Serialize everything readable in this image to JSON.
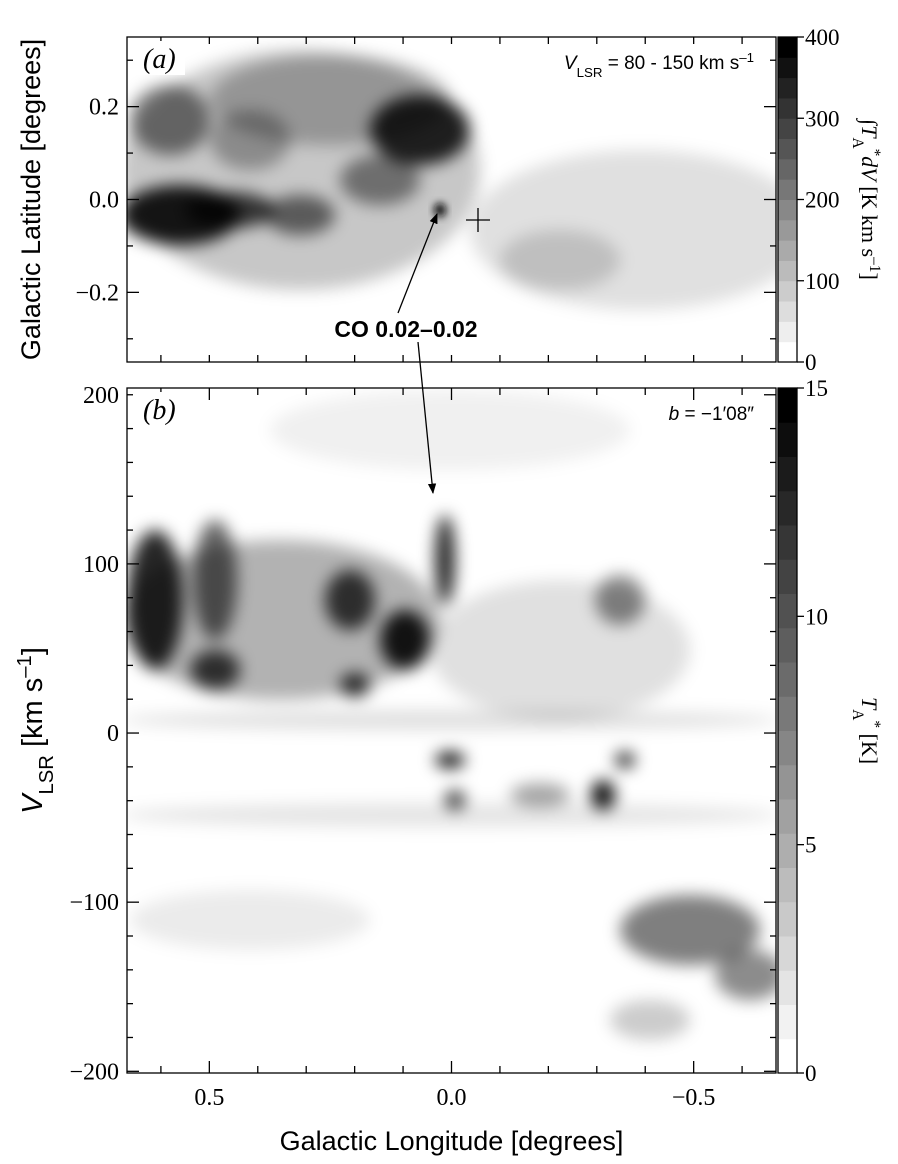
{
  "chart_data": [
    {
      "type": "heatmap",
      "panel_label": "(a)",
      "annotation": [
        {
          "text": "V",
          "style": "italic"
        },
        {
          "text": "LSR",
          "style": "sub"
        },
        {
          "text": " = 80 - 150 km s"
        },
        {
          "text": "–1",
          "style": "sup"
        }
      ],
      "ylabel": "Galactic Latitude  [degrees]",
      "xlim": [
        0.67,
        -0.67
      ],
      "xminorticks": [
        0.6,
        0.5,
        0.4,
        0.3,
        0.2,
        0.1,
        0,
        -0.1,
        -0.2,
        -0.3,
        -0.4,
        -0.5,
        -0.6
      ],
      "ylim": [
        -0.35,
        0.35
      ],
      "yticks": [
        {
          "value": 0.2,
          "label": "0.2"
        },
        {
          "value": 0,
          "label": "0.0"
        },
        {
          "value": -0.2,
          "label": "−0.2"
        }
      ],
      "yminorticks": [
        0.3,
        0.1,
        -0.1,
        -0.3
      ],
      "callout": "CO 0.02–0.02",
      "colorbar": {
        "lim": [
          0,
          400
        ],
        "ticks": [
          0,
          100,
          200,
          300,
          400
        ],
        "steps": 16,
        "label": [
          {
            "text": "∫",
            "style": "plain"
          },
          {
            "text": "T",
            "style": "italic"
          },
          {
            "text": "A",
            "style": "sub"
          },
          {
            "text": "*",
            "style": "sup"
          },
          {
            "text": "dV",
            "style": "italic"
          },
          {
            "text": " [K km s"
          },
          {
            "text": "–1",
            "style": "sup"
          },
          {
            "text": "]"
          }
        ]
      }
    },
    {
      "type": "heatmap",
      "panel_label": "(b)",
      "annotation": [
        {
          "text": "b",
          "style": "italic"
        },
        {
          "text": " = −1′08″"
        }
      ],
      "ylabel": [
        {
          "text": "V",
          "style": "italic"
        },
        {
          "text": "LSR",
          "style": "sub"
        },
        {
          "text": "  [km s"
        },
        {
          "text": "–1",
          "style": "sup"
        },
        {
          "text": "]"
        }
      ],
      "xlabel": "Galactic Longitude  [degrees]",
      "xlim": [
        0.67,
        -0.67
      ],
      "xticks": [
        {
          "value": 0.5,
          "label": "0.5"
        },
        {
          "value": 0,
          "label": "0.0"
        },
        {
          "value": -0.5,
          "label": "−0.5"
        }
      ],
      "xminorticks": [
        0.6,
        0.4,
        0.3,
        0.2,
        0.1,
        -0.1,
        -0.2,
        -0.3,
        -0.4,
        -0.6
      ],
      "ylim": [
        -201,
        204
      ],
      "yticks": [
        200,
        100,
        0,
        {
          "value": -100,
          "label": "−100"
        },
        {
          "value": -200,
          "label": "−200"
        }
      ],
      "yminorticks": [
        180,
        160,
        140,
        120,
        80,
        60,
        40,
        20,
        -20,
        -40,
        -60,
        -80,
        -120,
        -140,
        -160,
        -180
      ],
      "colorbar": {
        "lim": [
          0,
          15
        ],
        "ticks": [
          0,
          5,
          10,
          15
        ],
        "steps": 20,
        "label": [
          {
            "text": "T",
            "style": "italic"
          },
          {
            "text": "A",
            "style": "sub"
          },
          {
            "text": "*",
            "style": "sup"
          },
          {
            "text": " [K]"
          }
        ]
      }
    }
  ]
}
